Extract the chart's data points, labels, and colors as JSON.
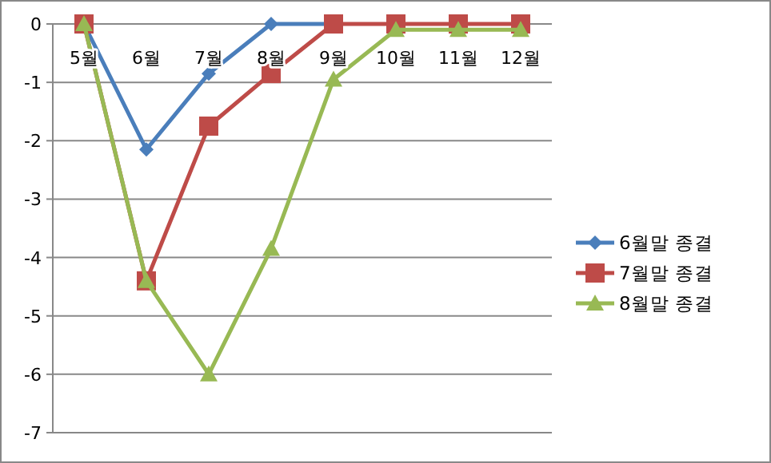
{
  "chart_data": {
    "type": "line",
    "categories": [
      "5월",
      "6월",
      "7월",
      "8월",
      "9월",
      "10월",
      "11월",
      "12월"
    ],
    "series": [
      {
        "name": "6월말 종결",
        "color": "#4a7ebb",
        "marker": "diamond",
        "values": [
          0,
          -2.15,
          -0.85,
          0,
          0,
          null,
          null,
          null
        ]
      },
      {
        "name": "7월말 종결",
        "color": "#be4b48",
        "marker": "square",
        "values": [
          0,
          -4.4,
          -1.75,
          -0.85,
          0,
          0,
          0,
          0
        ]
      },
      {
        "name": "8월말 종결",
        "color": "#98b954",
        "marker": "triangle",
        "values": [
          0,
          -4.4,
          -6,
          -3.85,
          -0.95,
          -0.1,
          -0.1,
          -0.1
        ]
      }
    ],
    "ylim": [
      -7,
      0
    ],
    "yticks": [
      0,
      -1,
      -2,
      -3,
      -4,
      -5,
      -6,
      -7
    ],
    "grid": "y",
    "legend": "right"
  }
}
